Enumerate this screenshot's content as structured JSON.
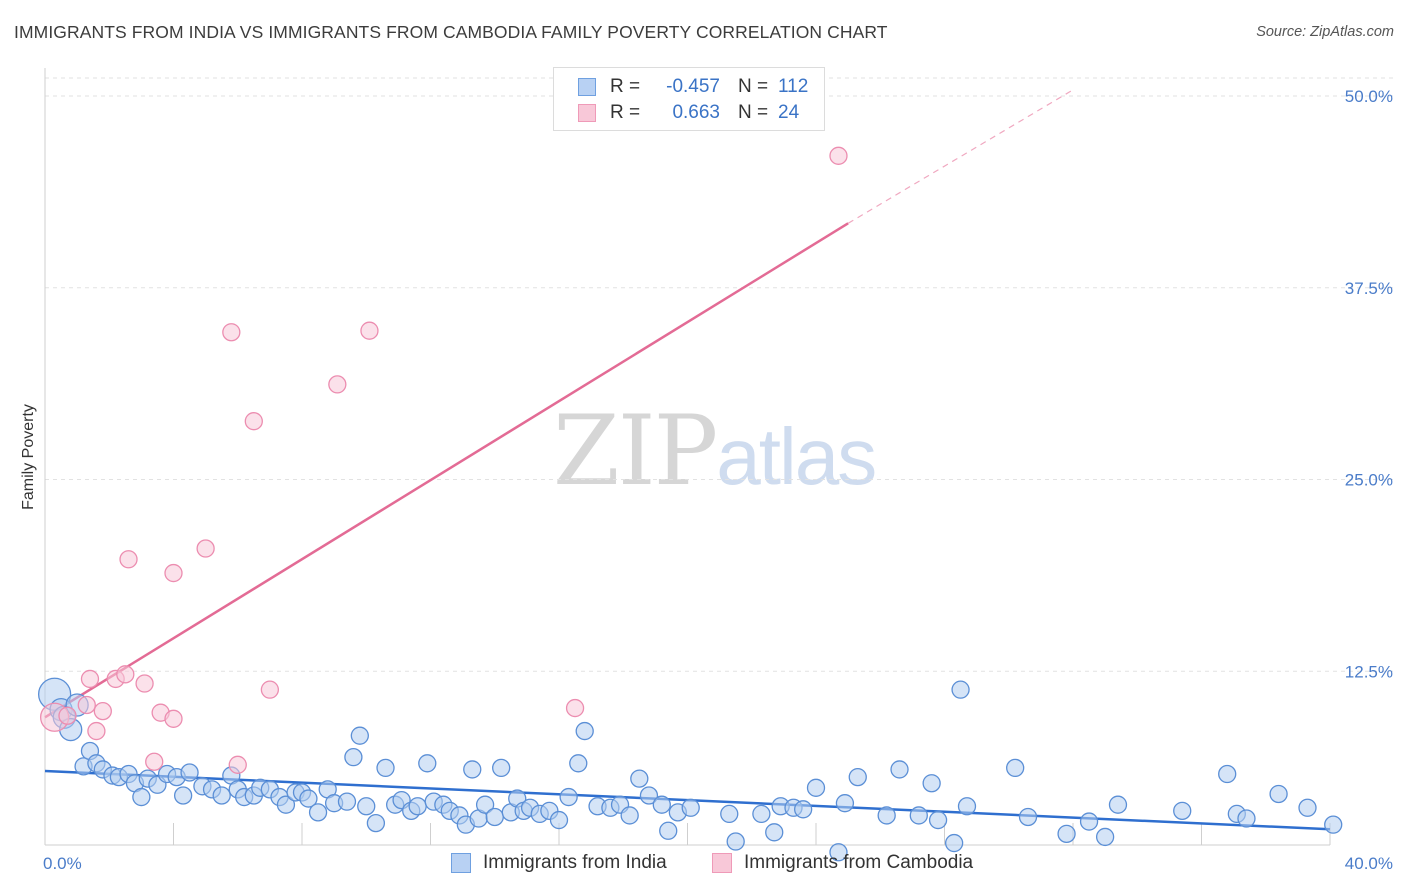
{
  "title": "IMMIGRANTS FROM INDIA VS IMMIGRANTS FROM CAMBODIA FAMILY POVERTY CORRELATION CHART",
  "source": "Source: ZipAtlas.com",
  "watermark": {
    "zip": "ZIP",
    "atlas": "atlas"
  },
  "legend": {
    "rows": [
      {
        "r_label": "R =",
        "r_value": "-0.457",
        "n_label": "N =",
        "n_value": "112",
        "color": "#6fa0e0",
        "fill": "#b8d1f3"
      },
      {
        "r_label": "R =",
        "r_value": "0.663",
        "n_label": "N =",
        "n_value": "24",
        "color": "#ef9ab8",
        "fill": "#f8c8d8"
      }
    ]
  },
  "bottom_legend": {
    "india": "Immigrants from India",
    "cambodia": "Immigrants from Cambodia"
  },
  "colors": {
    "india_stroke": "#5b8fd6",
    "india_fill": "#b3cdf0",
    "india_line": "#2f6fcf",
    "cambodia_stroke": "#ec8db0",
    "cambodia_fill": "#f7c9d9",
    "cambodia_line": "#e36b95"
  },
  "chart_data": {
    "type": "scatter",
    "title": "IMMIGRANTS FROM INDIA VS IMMIGRANTS FROM CAMBODIA FAMILY POVERTY CORRELATION CHART",
    "xlabel": "",
    "ylabel": "Family Poverty",
    "xlim": [
      0,
      40
    ],
    "ylim": [
      0,
      50
    ],
    "x_tick_labels": [
      "0.0%",
      "40.0%"
    ],
    "y_ticks": [
      12.5,
      25.0,
      37.5,
      50.0
    ],
    "y_tick_labels": [
      "12.5%",
      "25.0%",
      "37.5%",
      "50.0%"
    ],
    "grid": true,
    "legend_position": "top-center",
    "series": [
      {
        "name": "Immigrants from India",
        "trend": {
          "x": [
            0,
            40
          ],
          "y": [
            6.0,
            2.2
          ]
        },
        "points": [
          [
            0.3,
            11.0
          ],
          [
            0.5,
            10.0
          ],
          [
            0.6,
            9.5
          ],
          [
            0.8,
            8.7
          ],
          [
            1.0,
            10.3
          ],
          [
            1.2,
            6.3
          ],
          [
            1.4,
            7.3
          ],
          [
            1.6,
            6.5
          ],
          [
            1.8,
            6.1
          ],
          [
            2.1,
            5.7
          ],
          [
            2.3,
            5.6
          ],
          [
            2.6,
            5.8
          ],
          [
            2.8,
            5.2
          ],
          [
            3.0,
            4.3
          ],
          [
            3.2,
            5.5
          ],
          [
            3.5,
            5.1
          ],
          [
            3.8,
            5.8
          ],
          [
            4.1,
            5.6
          ],
          [
            4.3,
            4.4
          ],
          [
            4.5,
            5.9
          ],
          [
            4.9,
            5.0
          ],
          [
            5.2,
            4.8
          ],
          [
            5.5,
            4.4
          ],
          [
            5.8,
            5.7
          ],
          [
            6.0,
            4.8
          ],
          [
            6.2,
            4.3
          ],
          [
            6.5,
            4.4
          ],
          [
            6.7,
            4.9
          ],
          [
            7.0,
            4.8
          ],
          [
            7.3,
            4.3
          ],
          [
            7.5,
            3.8
          ],
          [
            7.8,
            4.6
          ],
          [
            8.0,
            4.6
          ],
          [
            8.2,
            4.2
          ],
          [
            8.5,
            3.3
          ],
          [
            8.8,
            4.8
          ],
          [
            9.0,
            3.9
          ],
          [
            9.4,
            4.0
          ],
          [
            9.6,
            6.9
          ],
          [
            9.8,
            8.3
          ],
          [
            10.0,
            3.7
          ],
          [
            10.3,
            2.6
          ],
          [
            10.6,
            6.2
          ],
          [
            10.9,
            3.8
          ],
          [
            11.1,
            4.1
          ],
          [
            11.4,
            3.4
          ],
          [
            11.6,
            3.7
          ],
          [
            11.9,
            6.5
          ],
          [
            12.1,
            4.0
          ],
          [
            12.4,
            3.8
          ],
          [
            12.6,
            3.4
          ],
          [
            12.9,
            3.1
          ],
          [
            13.1,
            2.5
          ],
          [
            13.3,
            6.1
          ],
          [
            13.5,
            2.9
          ],
          [
            13.7,
            3.8
          ],
          [
            14.0,
            3.0
          ],
          [
            14.2,
            6.2
          ],
          [
            14.5,
            3.3
          ],
          [
            14.7,
            4.2
          ],
          [
            14.9,
            3.4
          ],
          [
            15.1,
            3.6
          ],
          [
            15.4,
            3.2
          ],
          [
            15.7,
            3.4
          ],
          [
            16.0,
            2.8
          ],
          [
            16.3,
            4.3
          ],
          [
            16.6,
            6.5
          ],
          [
            16.8,
            8.6
          ],
          [
            17.2,
            3.7
          ],
          [
            17.6,
            3.6
          ],
          [
            17.9,
            3.8
          ],
          [
            18.2,
            3.1
          ],
          [
            18.5,
            5.5
          ],
          [
            18.8,
            4.4
          ],
          [
            19.2,
            3.8
          ],
          [
            19.4,
            2.1
          ],
          [
            19.7,
            3.3
          ],
          [
            20.1,
            3.6
          ],
          [
            21.3,
            3.2
          ],
          [
            21.5,
            1.4
          ],
          [
            22.3,
            3.2
          ],
          [
            22.7,
            2.0
          ],
          [
            22.9,
            3.7
          ],
          [
            23.3,
            3.6
          ],
          [
            23.6,
            3.5
          ],
          [
            24.0,
            4.9
          ],
          [
            24.7,
            0.7
          ],
          [
            24.9,
            3.9
          ],
          [
            25.3,
            5.6
          ],
          [
            26.2,
            3.1
          ],
          [
            26.6,
            6.1
          ],
          [
            27.2,
            3.1
          ],
          [
            27.6,
            5.2
          ],
          [
            27.8,
            2.8
          ],
          [
            28.3,
            1.3
          ],
          [
            28.5,
            11.3
          ],
          [
            28.7,
            3.7
          ],
          [
            30.2,
            6.2
          ],
          [
            30.6,
            3.0
          ],
          [
            31.8,
            1.9
          ],
          [
            32.5,
            2.7
          ],
          [
            33.0,
            1.7
          ],
          [
            33.4,
            3.8
          ],
          [
            35.4,
            3.4
          ],
          [
            36.8,
            5.8
          ],
          [
            37.1,
            3.2
          ],
          [
            37.4,
            2.9
          ],
          [
            38.4,
            4.5
          ],
          [
            39.3,
            3.6
          ],
          [
            40.1,
            2.5
          ]
        ]
      },
      {
        "name": "Immigrants from Cambodia",
        "trend": {
          "x": [
            0,
            25
          ],
          "y": [
            9.5,
            41.7
          ]
        },
        "trend_dashed": {
          "x": [
            25,
            32
          ],
          "y": [
            41.7,
            50.4
          ]
        },
        "points": [
          [
            0.3,
            9.5
          ],
          [
            0.7,
            9.6
          ],
          [
            1.3,
            10.3
          ],
          [
            1.4,
            12.0
          ],
          [
            1.6,
            8.6
          ],
          [
            1.8,
            9.9
          ],
          [
            2.2,
            12.0
          ],
          [
            2.5,
            12.3
          ],
          [
            2.6,
            19.8
          ],
          [
            3.1,
            11.7
          ],
          [
            3.4,
            6.6
          ],
          [
            3.6,
            9.8
          ],
          [
            4.0,
            9.4
          ],
          [
            4.0,
            18.9
          ],
          [
            5.0,
            20.5
          ],
          [
            5.8,
            34.6
          ],
          [
            6.0,
            6.4
          ],
          [
            6.5,
            28.8
          ],
          [
            7.0,
            11.3
          ],
          [
            9.1,
            31.2
          ],
          [
            10.1,
            34.7
          ],
          [
            16.5,
            10.1
          ],
          [
            24.7,
            46.1
          ]
        ]
      }
    ]
  }
}
